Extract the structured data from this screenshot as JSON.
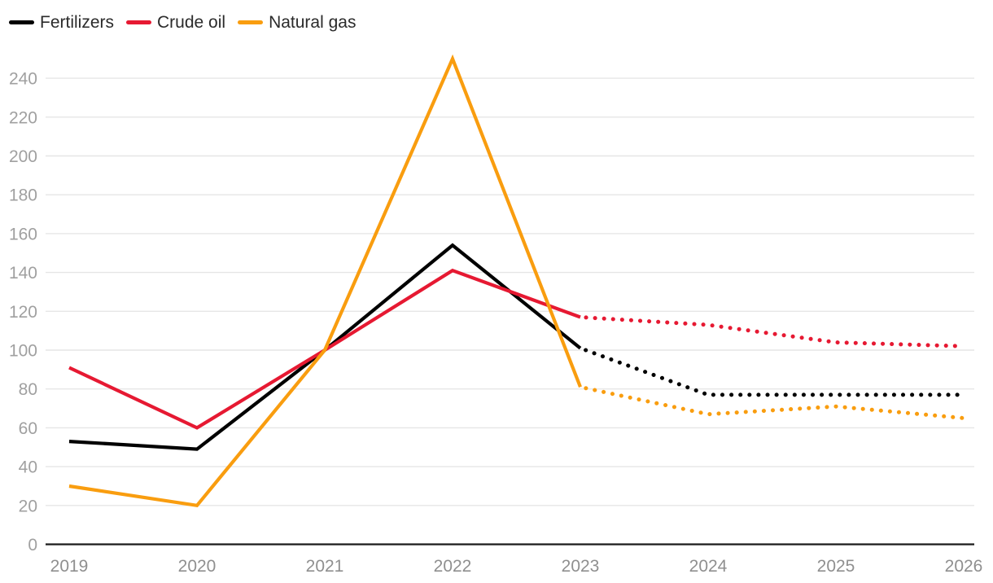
{
  "chart_data": {
    "type": "line",
    "title": "",
    "x_labels": [
      "2019",
      "2020",
      "2021",
      "2022",
      "2023",
      "2024",
      "2025",
      "2026"
    ],
    "y_ticks": [
      0,
      20,
      40,
      60,
      80,
      100,
      120,
      140,
      160,
      180,
      200,
      220,
      240
    ],
    "ylim": [
      0,
      252
    ],
    "grid": true,
    "legend_position": "top-left",
    "series": [
      {
        "name": "Fertilizers",
        "color": "#000000",
        "values": [
          53,
          49,
          100,
          154,
          101,
          77,
          77,
          77
        ],
        "solid_until_index": 4,
        "forecast_style": "dotted"
      },
      {
        "name": "Crude oil",
        "color": "#e61932",
        "values": [
          91,
          60,
          100,
          141,
          117,
          113,
          104,
          102
        ],
        "solid_until_index": 4,
        "forecast_style": "dotted"
      },
      {
        "name": "Natural gas",
        "color": "#f99d0f",
        "values": [
          30,
          20,
          100,
          250,
          81,
          67,
          71,
          65
        ],
        "solid_until_index": 4,
        "forecast_style": "dotted"
      }
    ],
    "colors": {
      "grid": "#e6e6e6",
      "axis": "#1a1a1a",
      "y_tick_text": "#a0a0a0",
      "x_tick_text": "#8f8f8f",
      "legend_text": "#2b2b2b",
      "background": "#ffffff"
    }
  }
}
